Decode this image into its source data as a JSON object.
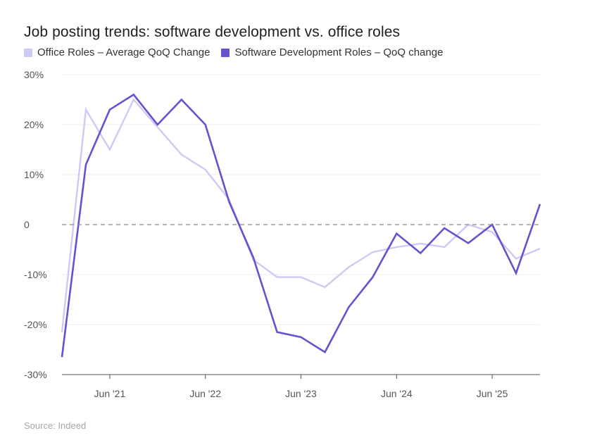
{
  "chart_data": {
    "type": "line",
    "title": "Job posting trends: software development vs. office roles",
    "source": "Source: Indeed",
    "y_ticks": [
      {
        "value": 30,
        "label": "30%"
      },
      {
        "value": 20,
        "label": "20%"
      },
      {
        "value": 10,
        "label": "10%"
      },
      {
        "value": 0,
        "label": "0"
      },
      {
        "value": -10,
        "label": "-10%"
      },
      {
        "value": -20,
        "label": "-20%"
      },
      {
        "value": -30,
        "label": "-30%"
      }
    ],
    "ylim": [
      -30,
      30
    ],
    "x_ticks": [
      {
        "x": 3,
        "label": "Jun '21"
      },
      {
        "x": 7,
        "label": "Jun '22"
      },
      {
        "x": 11,
        "label": "Jun '23"
      },
      {
        "x": 15,
        "label": "Jun '24"
      },
      {
        "x": 19,
        "label": "Jun '25"
      }
    ],
    "xlim": [
      1,
      21
    ],
    "zero_line": "dashed",
    "grid": true,
    "legend_position": "top-left",
    "series": [
      {
        "name": "Office Roles – Average QoQ Change",
        "color": "#cccbf5",
        "x": [
          1,
          2,
          3,
          4,
          5,
          6,
          7,
          8,
          9,
          10,
          11,
          12,
          13,
          14,
          15,
          16,
          17,
          18,
          19,
          20,
          21
        ],
        "values": [
          -21.5,
          23,
          15,
          25,
          19.5,
          14,
          11,
          5,
          -7,
          -10.5,
          -10.5,
          -12.5,
          -8.5,
          -5.5,
          -4.5,
          -3.8,
          -4.5,
          0,
          -1.5,
          -6.8,
          -4.8
        ]
      },
      {
        "name": "Software Development Roles – QoQ change",
        "color": "#6452cf",
        "x": [
          1,
          2,
          3,
          4,
          5,
          6,
          7,
          8,
          9,
          10,
          11,
          12,
          13,
          14,
          15,
          16,
          17,
          18,
          19,
          20,
          21
        ],
        "values": [
          -26.5,
          12,
          23,
          26,
          20,
          25,
          20,
          4.5,
          -6.5,
          -21.5,
          -22.5,
          -25.5,
          -16.5,
          -10.5,
          -1.8,
          -5.7,
          -0.7,
          -3.7,
          0,
          -9.7,
          4.1
        ]
      }
    ]
  }
}
